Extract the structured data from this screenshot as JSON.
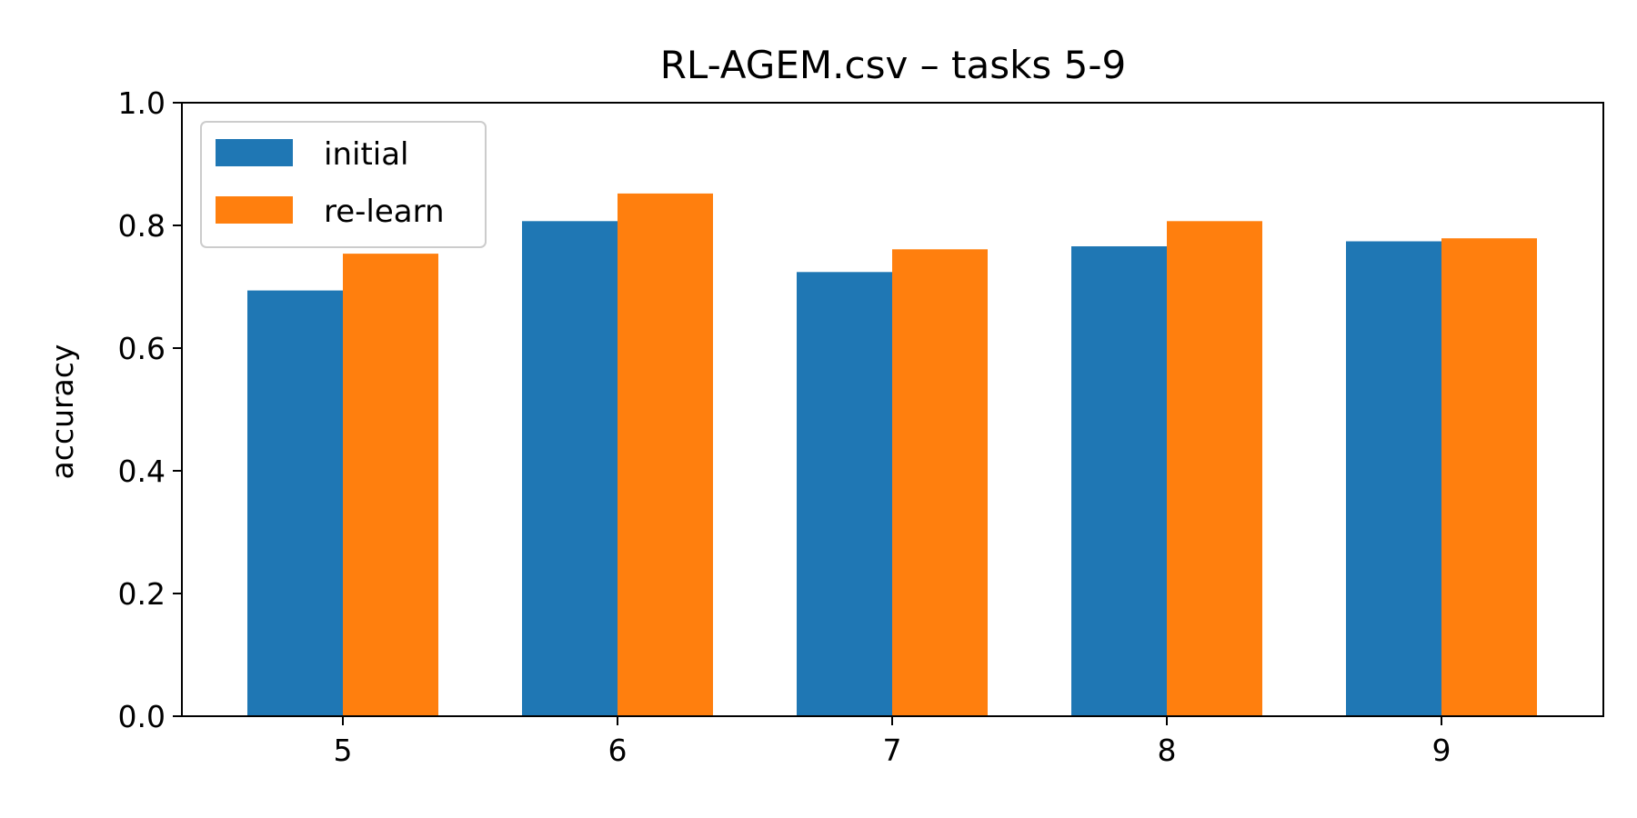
{
  "chart_data": {
    "type": "bar",
    "title": "RL-AGEM.csv – tasks 5-9",
    "xlabel": "",
    "ylabel": "accuracy",
    "categories": [
      "5",
      "6",
      "7",
      "8",
      "9"
    ],
    "series": [
      {
        "name": "initial",
        "color": "#1f77b4",
        "values": [
          0.694,
          0.807,
          0.724,
          0.766,
          0.774
        ]
      },
      {
        "name": "re-learn",
        "color": "#ff7f0e",
        "values": [
          0.754,
          0.852,
          0.761,
          0.807,
          0.779
        ]
      }
    ],
    "ylim": [
      0,
      1
    ],
    "yticks": [
      "0.0",
      "0.2",
      "0.4",
      "0.6",
      "0.8",
      "1.0"
    ],
    "grid": false,
    "legend": "upper-left"
  }
}
